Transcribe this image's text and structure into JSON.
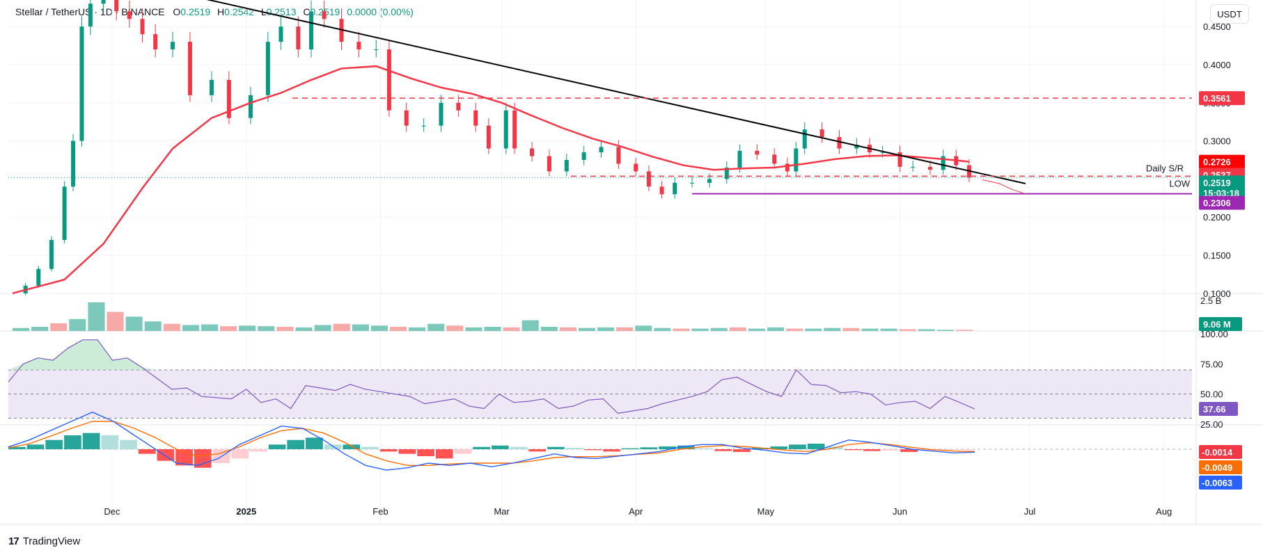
{
  "header": {
    "symbol": "Stellar / TetherUS",
    "interval": "1D",
    "exchange": "BINANCE",
    "open_label": "O",
    "open": "0.2519",
    "high_label": "H",
    "high": "0.2542",
    "low_label": "L",
    "low": "0.2513",
    "close_label": "C",
    "close": "0.2519",
    "change": "0.0000 (0.00%)"
  },
  "currency_button": "USDT",
  "footer": {
    "brand": "TradingView",
    "logo_icon": "tradingview-logo-icon"
  },
  "colors": {
    "up": "#089981",
    "down": "#f23645",
    "ma": "#f23645",
    "trendline": "#000000",
    "support_line": "#9c27b0",
    "rsi_line": "#7e57c2",
    "rsi_band": "#ede7f6",
    "macd_line": "#2962ff",
    "signal_line": "#ff6d00"
  },
  "chart_data": [
    {
      "type": "candlestick",
      "title": "Stellar / TetherUS · 1D · BINANCE",
      "price_scale": {
        "min": 0.1,
        "max": 0.45,
        "ticks": [
          "0.4500",
          "0.4000",
          "0.3500",
          "0.3000",
          "0.2500",
          "0.2000",
          "0.1500",
          "0.1000"
        ]
      },
      "x_labels": [
        "Dec",
        "2025",
        "Feb",
        "Mar",
        "Apr",
        "May",
        "Jun",
        "Jul",
        "Aug"
      ],
      "close_series": [
        {
          "d": "2024-11-08",
          "c": 0.1
        },
        {
          "d": "2024-11-11",
          "c": 0.11
        },
        {
          "d": "2024-11-14",
          "c": 0.132
        },
        {
          "d": "2024-11-17",
          "c": 0.17
        },
        {
          "d": "2024-11-20",
          "c": 0.24
        },
        {
          "d": "2024-11-22",
          "c": 0.3
        },
        {
          "d": "2024-11-24",
          "c": 0.45
        },
        {
          "d": "2024-11-26",
          "c": 0.48
        },
        {
          "d": "2024-11-29",
          "c": 0.5
        },
        {
          "d": "2024-12-02",
          "c": 0.47
        },
        {
          "d": "2024-12-05",
          "c": 0.46
        },
        {
          "d": "2024-12-08",
          "c": 0.44
        },
        {
          "d": "2024-12-11",
          "c": 0.42
        },
        {
          "d": "2024-12-15",
          "c": 0.43
        },
        {
          "d": "2024-12-19",
          "c": 0.36
        },
        {
          "d": "2024-12-24",
          "c": 0.38
        },
        {
          "d": "2024-12-28",
          "c": 0.33
        },
        {
          "d": "2025-01-02",
          "c": 0.36
        },
        {
          "d": "2025-01-06",
          "c": 0.43
        },
        {
          "d": "2025-01-09",
          "c": 0.45
        },
        {
          "d": "2025-01-13",
          "c": 0.42
        },
        {
          "d": "2025-01-16",
          "c": 0.47
        },
        {
          "d": "2025-01-19",
          "c": 0.46
        },
        {
          "d": "2025-01-23",
          "c": 0.43
        },
        {
          "d": "2025-01-27",
          "c": 0.42
        },
        {
          "d": "2025-01-31",
          "c": 0.42
        },
        {
          "d": "2025-02-03",
          "c": 0.34
        },
        {
          "d": "2025-02-07",
          "c": 0.32
        },
        {
          "d": "2025-02-11",
          "c": 0.32
        },
        {
          "d": "2025-02-15",
          "c": 0.35
        },
        {
          "d": "2025-02-19",
          "c": 0.34
        },
        {
          "d": "2025-02-23",
          "c": 0.32
        },
        {
          "d": "2025-02-26",
          "c": 0.29
        },
        {
          "d": "2025-03-02",
          "c": 0.34
        },
        {
          "d": "2025-03-04",
          "c": 0.29
        },
        {
          "d": "2025-03-08",
          "c": 0.28
        },
        {
          "d": "2025-03-12",
          "c": 0.26
        },
        {
          "d": "2025-03-16",
          "c": 0.275
        },
        {
          "d": "2025-03-20",
          "c": 0.285
        },
        {
          "d": "2025-03-24",
          "c": 0.292
        },
        {
          "d": "2025-03-28",
          "c": 0.27
        },
        {
          "d": "2025-04-01",
          "c": 0.26
        },
        {
          "d": "2025-04-04",
          "c": 0.24
        },
        {
          "d": "2025-04-07",
          "c": 0.23
        },
        {
          "d": "2025-04-10",
          "c": 0.245
        },
        {
          "d": "2025-04-14",
          "c": 0.245
        },
        {
          "d": "2025-04-18",
          "c": 0.25
        },
        {
          "d": "2025-04-22",
          "c": 0.265
        },
        {
          "d": "2025-04-25",
          "c": 0.287
        },
        {
          "d": "2025-04-29",
          "c": 0.282
        },
        {
          "d": "2025-05-03",
          "c": 0.27
        },
        {
          "d": "2025-05-06",
          "c": 0.26
        },
        {
          "d": "2025-05-08",
          "c": 0.29
        },
        {
          "d": "2025-05-10",
          "c": 0.315
        },
        {
          "d": "2025-05-14",
          "c": 0.305
        },
        {
          "d": "2025-05-18",
          "c": 0.29
        },
        {
          "d": "2025-05-22",
          "c": 0.295
        },
        {
          "d": "2025-05-25",
          "c": 0.285
        },
        {
          "d": "2025-05-28",
          "c": 0.285
        },
        {
          "d": "2025-06-01",
          "c": 0.266
        },
        {
          "d": "2025-06-04",
          "c": 0.266
        },
        {
          "d": "2025-06-08",
          "c": 0.262
        },
        {
          "d": "2025-06-11",
          "c": 0.28
        },
        {
          "d": "2025-06-14",
          "c": 0.268
        },
        {
          "d": "2025-06-17",
          "c": 0.2519
        }
      ],
      "ma_series": [
        {
          "d": "2024-11-08",
          "v": 0.1
        },
        {
          "d": "2024-11-20",
          "v": 0.118
        },
        {
          "d": "2024-11-29",
          "v": 0.165
        },
        {
          "d": "2024-12-08",
          "v": 0.238
        },
        {
          "d": "2024-12-15",
          "v": 0.29
        },
        {
          "d": "2024-12-24",
          "v": 0.33
        },
        {
          "d": "2025-01-02",
          "v": 0.35
        },
        {
          "d": "2025-01-09",
          "v": 0.363
        },
        {
          "d": "2025-01-16",
          "v": 0.38
        },
        {
          "d": "2025-01-23",
          "v": 0.395
        },
        {
          "d": "2025-01-31",
          "v": 0.398
        },
        {
          "d": "2025-02-08",
          "v": 0.382
        },
        {
          "d": "2025-02-15",
          "v": 0.37
        },
        {
          "d": "2025-02-22",
          "v": 0.362
        },
        {
          "d": "2025-03-01",
          "v": 0.35
        },
        {
          "d": "2025-03-08",
          "v": 0.333
        },
        {
          "d": "2025-03-15",
          "v": 0.317
        },
        {
          "d": "2025-03-22",
          "v": 0.303
        },
        {
          "d": "2025-03-29",
          "v": 0.292
        },
        {
          "d": "2025-04-05",
          "v": 0.279
        },
        {
          "d": "2025-04-12",
          "v": 0.268
        },
        {
          "d": "2025-04-19",
          "v": 0.262
        },
        {
          "d": "2025-04-26",
          "v": 0.264
        },
        {
          "d": "2025-05-03",
          "v": 0.265
        },
        {
          "d": "2025-05-10",
          "v": 0.27
        },
        {
          "d": "2025-05-17",
          "v": 0.276
        },
        {
          "d": "2025-05-24",
          "v": 0.28
        },
        {
          "d": "2025-05-31",
          "v": 0.281
        },
        {
          "d": "2025-06-07",
          "v": 0.278
        },
        {
          "d": "2025-06-14",
          "v": 0.2745
        },
        {
          "d": "2025-06-17",
          "v": 0.2726
        }
      ],
      "trendline": [
        {
          "d": "2024-11-26",
          "v": 0.52
        },
        {
          "d": "2025-06-30",
          "v": 0.244
        }
      ],
      "resistance": {
        "value": 0.3561
      },
      "daily_sr": {
        "value": 0.2537,
        "label": "Daily S/R"
      },
      "low_line": {
        "value": 0.2306,
        "label": "LOW",
        "start": "2025-04-14"
      },
      "projection": [
        {
          "d": "2025-06-20",
          "v": 0.249
        },
        {
          "d": "2025-06-24",
          "v": 0.244
        },
        {
          "d": "2025-06-27",
          "v": 0.236
        },
        {
          "d": "2025-06-30",
          "v": 0.2306
        }
      ],
      "tags": [
        {
          "text": "0.3561",
          "value": 0.3561,
          "color": "#f23645"
        },
        {
          "text": "0.2726",
          "value": 0.2726,
          "color": "#ff0000"
        },
        {
          "text": "0.2537",
          "value": 0.2537,
          "color": "#f23645"
        },
        {
          "text": "0.2519",
          "value": 0.2519,
          "color": "#089981",
          "extra": "15:03:18"
        },
        {
          "text": "0.2306",
          "value": 0.2306,
          "color": "#9c27b0"
        }
      ]
    },
    {
      "type": "bar",
      "title": "Volume",
      "scale_labels": [
        "2.5 B"
      ],
      "current_value": "9.06 M",
      "values": [
        0.25,
        0.35,
        0.65,
        1.0,
        2.4,
        1.6,
        1.2,
        0.8,
        0.6,
        0.5,
        0.55,
        0.4,
        0.45,
        0.4,
        0.35,
        0.3,
        0.5,
        0.6,
        0.55,
        0.45,
        0.35,
        0.3,
        0.6,
        0.45,
        0.3,
        0.35,
        0.3,
        0.9,
        0.35,
        0.3,
        0.25,
        0.3,
        0.3,
        0.45,
        0.25,
        0.2,
        0.2,
        0.25,
        0.3,
        0.2,
        0.3,
        0.2,
        0.2,
        0.25,
        0.25,
        0.2,
        0.2,
        0.15,
        0.15,
        0.1,
        0.1
      ]
    },
    {
      "type": "line",
      "title": "RSI",
      "ylim": [
        25,
        100
      ],
      "ticks": [
        "100.00",
        "75.00",
        "50.00",
        "25.00"
      ],
      "levels": [
        70,
        50,
        30
      ],
      "current_value": "37.66",
      "values": [
        60,
        75,
        80,
        78,
        88,
        95,
        95,
        78,
        80,
        72,
        63,
        54,
        55,
        48,
        47,
        46,
        54,
        43,
        46,
        38,
        57,
        55,
        53,
        58,
        54,
        52,
        50,
        48,
        42,
        44,
        46,
        40,
        38,
        50,
        43,
        44,
        46,
        38,
        40,
        45,
        46,
        34,
        36,
        38,
        42,
        45,
        48,
        52,
        62,
        64,
        58,
        52,
        48,
        70,
        58,
        57,
        51,
        52,
        50,
        41,
        43,
        44,
        38,
        48,
        43,
        37.66
      ]
    },
    {
      "type": "histogram+line",
      "title": "MACD",
      "ticks": [
        "-0.0014",
        "-0.0049",
        "-0.0063"
      ],
      "current_values": {
        "histogram": "-0.0014",
        "signal": "-0.0049",
        "macd": "-0.0063"
      },
      "histogram": [
        0.005,
        0.01,
        0.02,
        0.03,
        0.035,
        0.03,
        0.02,
        -0.01,
        -0.025,
        -0.035,
        -0.04,
        -0.03,
        -0.02,
        -0.005,
        0.01,
        0.02,
        0.025,
        0.01,
        0.01,
        0.005,
        -0.005,
        -0.01,
        -0.015,
        -0.02,
        -0.01,
        0.005,
        0.008,
        0.005,
        -0.005,
        0.005,
        0.003,
        -0.002,
        -0.005,
        0.002,
        0.004,
        0.006,
        0.008,
        0.002,
        -0.004,
        -0.006,
        0.003,
        0.006,
        0.01,
        0.012,
        0.006,
        -0.002,
        -0.004,
        -0.003,
        -0.006,
        -0.003,
        -0.002,
        -0.0014
      ],
      "macd": [
        0.005,
        0.02,
        0.04,
        0.06,
        0.08,
        0.06,
        0.03,
        0.0,
        -0.03,
        -0.035,
        -0.02,
        0.01,
        0.03,
        0.05,
        0.045,
        0.02,
        -0.01,
        -0.035,
        -0.045,
        -0.04,
        -0.03,
        -0.035,
        -0.03,
        -0.038,
        -0.03,
        -0.02,
        -0.01,
        -0.018,
        -0.02,
        -0.015,
        -0.01,
        -0.005,
        0.005,
        0.01,
        0.01,
        0.002,
        -0.002,
        -0.008,
        -0.01,
        0.005,
        0.02,
        0.015,
        0.008,
        0.0,
        -0.004,
        -0.008,
        -0.0063
      ],
      "signal": [
        0.003,
        0.012,
        0.028,
        0.045,
        0.06,
        0.06,
        0.045,
        0.025,
        0.0,
        -0.015,
        -0.01,
        0.005,
        0.025,
        0.04,
        0.045,
        0.035,
        0.015,
        -0.01,
        -0.025,
        -0.035,
        -0.035,
        -0.032,
        -0.03,
        -0.03,
        -0.03,
        -0.025,
        -0.018,
        -0.016,
        -0.016,
        -0.014,
        -0.011,
        -0.008,
        0.0,
        0.005,
        0.008,
        0.006,
        0.002,
        -0.002,
        -0.005,
        0.0,
        0.01,
        0.014,
        0.01,
        0.004,
        -0.001,
        -0.004,
        -0.0049
      ]
    }
  ]
}
